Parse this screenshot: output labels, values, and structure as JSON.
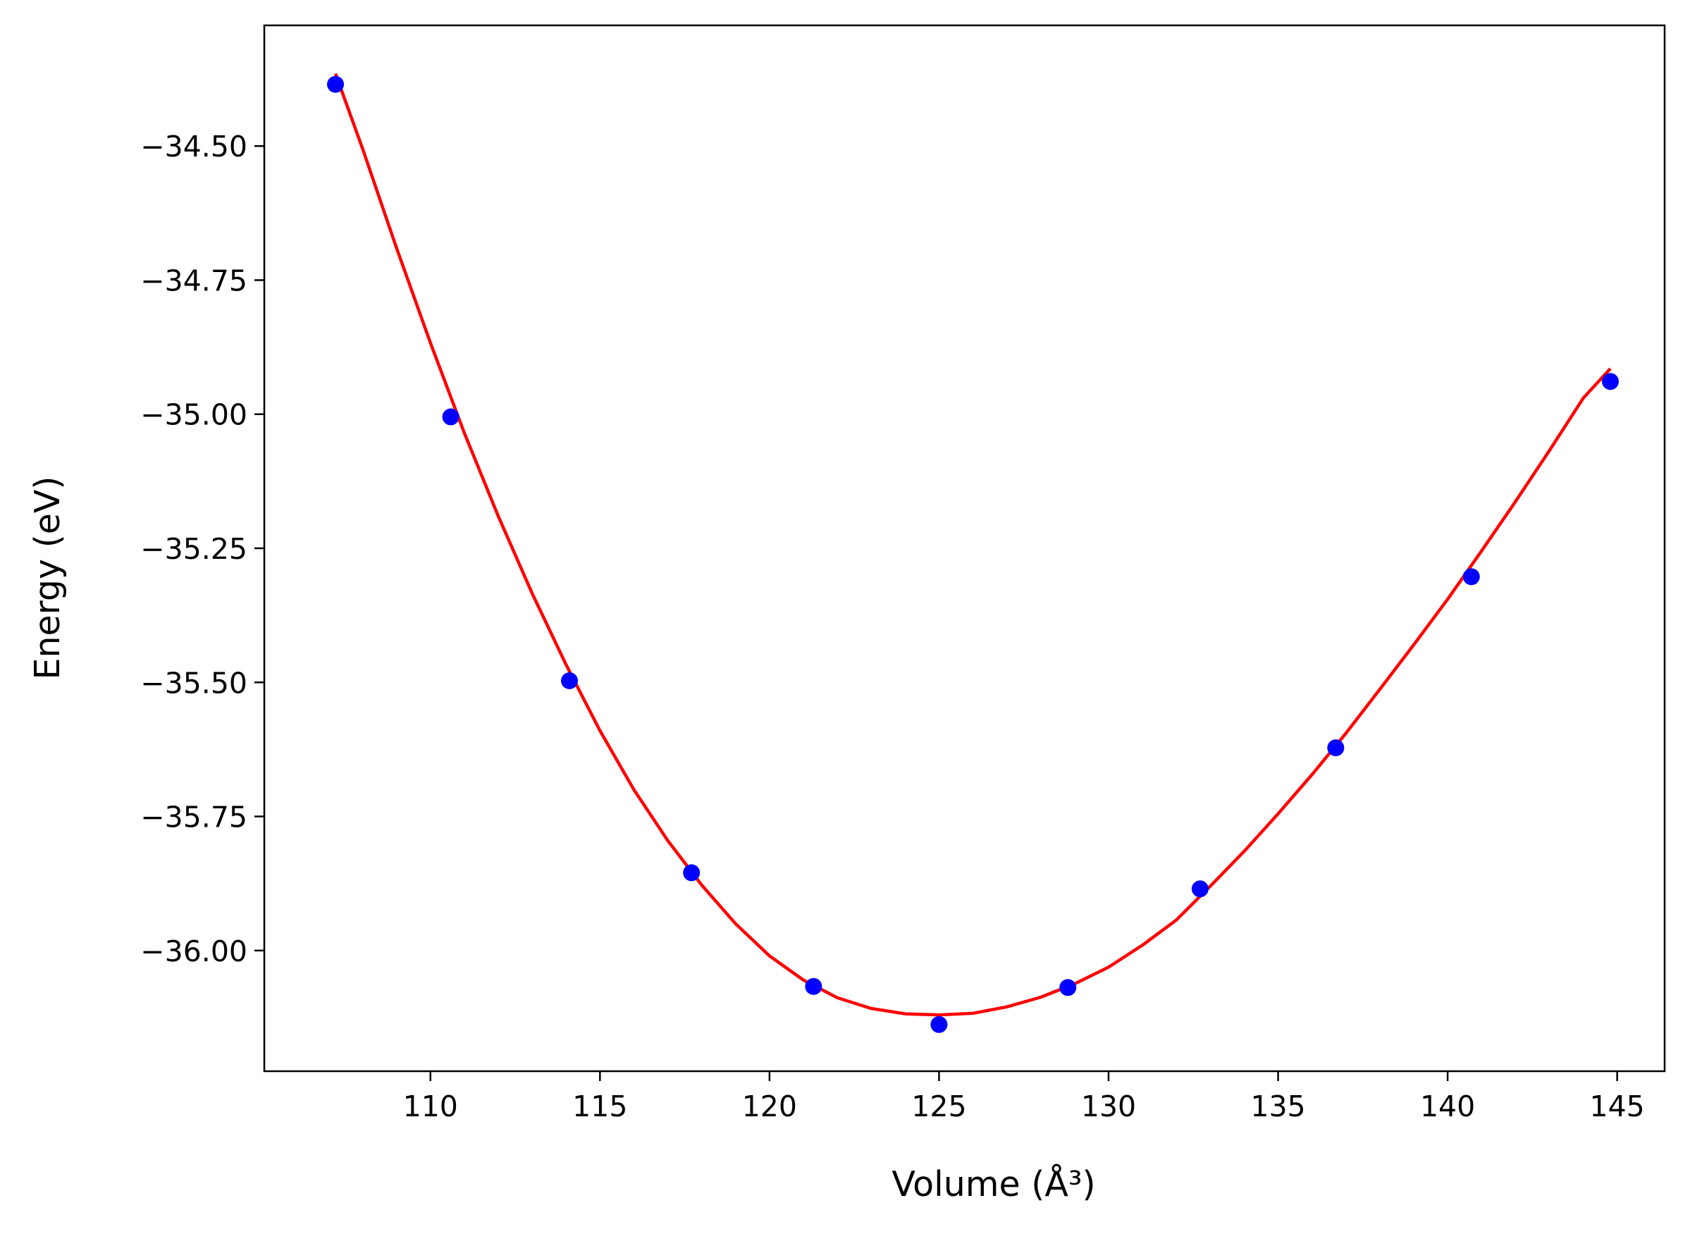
{
  "chart_data": {
    "type": "scatter",
    "title": "",
    "xlabel": "Volume (Å³)",
    "ylabel": "Energy (eV)",
    "xlim": [
      105.1,
      146.4
    ],
    "ylim": [
      -36.225,
      -34.275
    ],
    "xticks": [
      {
        "value": 110,
        "label": "110"
      },
      {
        "value": 115,
        "label": "115"
      },
      {
        "value": 120,
        "label": "120"
      },
      {
        "value": 125,
        "label": "125"
      },
      {
        "value": 130,
        "label": "130"
      },
      {
        "value": 135,
        "label": "135"
      },
      {
        "value": 140,
        "label": "140"
      },
      {
        "value": 145,
        "label": "145"
      }
    ],
    "yticks": [
      {
        "value": -34.5,
        "label": "−34.50"
      },
      {
        "value": -34.75,
        "label": "−34.75"
      },
      {
        "value": -35.0,
        "label": "−35.00"
      },
      {
        "value": -35.25,
        "label": "−35.25"
      },
      {
        "value": -35.5,
        "label": "−35.50"
      },
      {
        "value": -35.75,
        "label": "−35.75"
      },
      {
        "value": -36.0,
        "label": "−36.00"
      }
    ],
    "grid": false,
    "legend": "none",
    "series": [
      {
        "kind": "scatter",
        "color": "#0000ff",
        "points": [
          {
            "x": 107.2,
            "y": -34.385
          },
          {
            "x": 110.6,
            "y": -35.005
          },
          {
            "x": 114.1,
            "y": -35.497
          },
          {
            "x": 117.7,
            "y": -35.855
          },
          {
            "x": 121.3,
            "y": -36.067
          },
          {
            "x": 125.0,
            "y": -36.138
          },
          {
            "x": 128.8,
            "y": -36.069
          },
          {
            "x": 132.7,
            "y": -35.885
          },
          {
            "x": 136.7,
            "y": -35.622
          },
          {
            "x": 140.7,
            "y": -35.303
          },
          {
            "x": 144.8,
            "y": -34.939
          }
        ]
      },
      {
        "kind": "line",
        "color": "#ff0000",
        "points": [
          {
            "x": 107.2,
            "y": -34.365
          },
          {
            "x": 108.0,
            "y": -34.505
          },
          {
            "x": 109.0,
            "y": -34.69
          },
          {
            "x": 110.0,
            "y": -34.867
          },
          {
            "x": 111.0,
            "y": -35.035
          },
          {
            "x": 112.0,
            "y": -35.19
          },
          {
            "x": 113.0,
            "y": -35.334
          },
          {
            "x": 114.0,
            "y": -35.467
          },
          {
            "x": 115.0,
            "y": -35.59
          },
          {
            "x": 116.0,
            "y": -35.7
          },
          {
            "x": 117.0,
            "y": -35.795
          },
          {
            "x": 118.0,
            "y": -35.878
          },
          {
            "x": 119.0,
            "y": -35.95
          },
          {
            "x": 120.0,
            "y": -36.01
          },
          {
            "x": 121.0,
            "y": -36.055
          },
          {
            "x": 122.0,
            "y": -36.088
          },
          {
            "x": 123.0,
            "y": -36.108
          },
          {
            "x": 124.0,
            "y": -36.118
          },
          {
            "x": 125.0,
            "y": -36.12
          },
          {
            "x": 126.0,
            "y": -36.117
          },
          {
            "x": 127.0,
            "y": -36.105
          },
          {
            "x": 128.0,
            "y": -36.087
          },
          {
            "x": 129.0,
            "y": -36.062
          },
          {
            "x": 130.0,
            "y": -36.031
          },
          {
            "x": 131.0,
            "y": -35.99
          },
          {
            "x": 132.0,
            "y": -35.943
          },
          {
            "x": 133.0,
            "y": -35.88
          },
          {
            "x": 134.0,
            "y": -35.815
          },
          {
            "x": 135.0,
            "y": -35.745
          },
          {
            "x": 136.0,
            "y": -35.672
          },
          {
            "x": 137.0,
            "y": -35.595
          },
          {
            "x": 138.0,
            "y": -35.513
          },
          {
            "x": 139.0,
            "y": -35.43
          },
          {
            "x": 140.0,
            "y": -35.345
          },
          {
            "x": 141.0,
            "y": -35.255
          },
          {
            "x": 142.0,
            "y": -35.163
          },
          {
            "x": 143.0,
            "y": -35.068
          },
          {
            "x": 144.0,
            "y": -34.97
          },
          {
            "x": 144.8,
            "y": -34.915
          }
        ]
      }
    ]
  }
}
